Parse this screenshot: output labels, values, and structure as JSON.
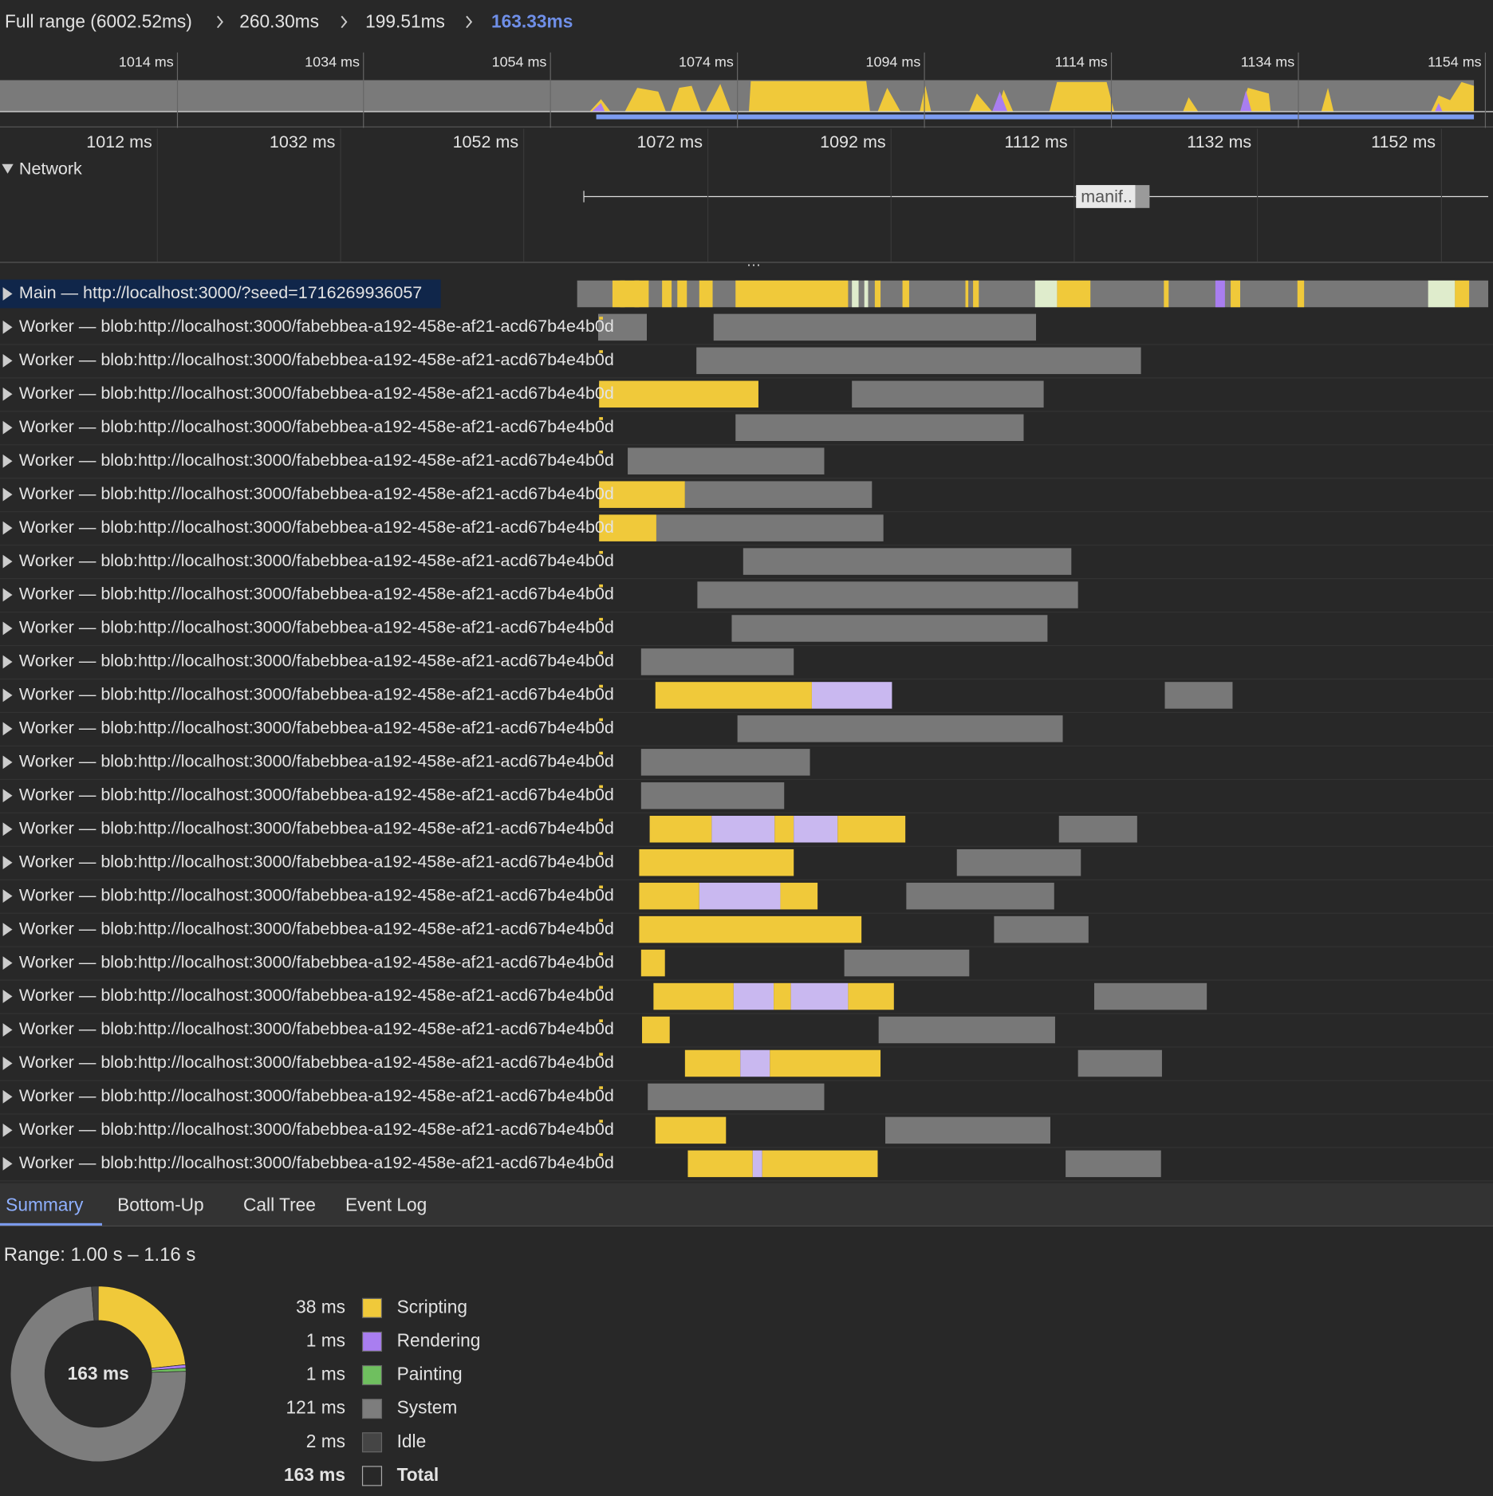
{
  "breadcrumbs": [
    "Full range (6002.52ms)",
    "260.30ms",
    "199.51ms",
    "163.33ms"
  ],
  "overview_ticks": [
    "1014 ms",
    "1034 ms",
    "1054 ms",
    "1074 ms",
    "1094 ms",
    "1114 ms",
    "1134 ms",
    "1154 ms"
  ],
  "ruler_ticks": [
    "1012 ms",
    "1032 ms",
    "1052 ms",
    "1072 ms",
    "1092 ms",
    "1112 ms",
    "1132 ms",
    "1152 ms"
  ],
  "network": {
    "label": "Network",
    "request": "manif.."
  },
  "main_track": "Main — http://localhost:3000/?seed=1716269936057",
  "worker_tracks": [
    "Worker — blob:http://localhost:3000/fabebbea-a192-458e-af21-acd67b4e4b0d",
    "Worker — blob:http://localhost:3000/fabebbea-a192-458e-af21-acd67b4e4b0d",
    "Worker — blob:http://localhost:3000/fabebbea-a192-458e-af21-acd67b4e4b0d",
    "Worker — blob:http://localhost:3000/fabebbea-a192-458e-af21-acd67b4e4b0d",
    "Worker — blob:http://localhost:3000/fabebbea-a192-458e-af21-acd67b4e4b0d",
    "Worker — blob:http://localhost:3000/fabebbea-a192-458e-af21-acd67b4e4b0d",
    "Worker — blob:http://localhost:3000/fabebbea-a192-458e-af21-acd67b4e4b0d",
    "Worker — blob:http://localhost:3000/fabebbea-a192-458e-af21-acd67b4e4b0d",
    "Worker — blob:http://localhost:3000/fabebbea-a192-458e-af21-acd67b4e4b0d",
    "Worker — blob:http://localhost:3000/fabebbea-a192-458e-af21-acd67b4e4b0d",
    "Worker — blob:http://localhost:3000/fabebbea-a192-458e-af21-acd67b4e4b0d",
    "Worker — blob:http://localhost:3000/fabebbea-a192-458e-af21-acd67b4e4b0d",
    "Worker — blob:http://localhost:3000/fabebbea-a192-458e-af21-acd67b4e4b0d",
    "Worker — blob:http://localhost:3000/fabebbea-a192-458e-af21-acd67b4e4b0d",
    "Worker — blob:http://localhost:3000/fabebbea-a192-458e-af21-acd67b4e4b0d",
    "Worker — blob:http://localhost:3000/fabebbea-a192-458e-af21-acd67b4e4b0d",
    "Worker — blob:http://localhost:3000/fabebbea-a192-458e-af21-acd67b4e4b0d",
    "Worker — blob:http://localhost:3000/fabebbea-a192-458e-af21-acd67b4e4b0d",
    "Worker — blob:http://localhost:3000/fabebbea-a192-458e-af21-acd67b4e4b0d",
    "Worker — blob:http://localhost:3000/fabebbea-a192-458e-af21-acd67b4e4b0d",
    "Worker — blob:http://localhost:3000/fabebbea-a192-458e-af21-acd67b4e4b0d",
    "Worker — blob:http://localhost:3000/fabebbea-a192-458e-af21-acd67b4e4b0d",
    "Worker — blob:http://localhost:3000/fabebbea-a192-458e-af21-acd67b4e4b0d",
    "Worker — blob:http://localhost:3000/fabebbea-a192-458e-af21-acd67b4e4b0d",
    "Worker — blob:http://localhost:3000/fabebbea-a192-458e-af21-acd67b4e4b0d",
    "Worker — blob:http://localhost:3000/fabebbea-a192-458e-af21-acd67b4e4b0d"
  ],
  "tabs": [
    "Summary",
    "Bottom-Up",
    "Call Tree",
    "Event Log"
  ],
  "summary": {
    "range": "Range: 1.00 s – 1.16 s",
    "items": [
      {
        "value": 38,
        "label": "38 ms",
        "name": "Scripting",
        "color": "#f0c93a"
      },
      {
        "value": 1,
        "label": "1 ms",
        "name": "Rendering",
        "color": "#a97ef0"
      },
      {
        "value": 1,
        "label": "1 ms",
        "name": "Painting",
        "color": "#6fbf5f"
      },
      {
        "value": 121,
        "label": "121 ms",
        "name": "System",
        "color": "#7d7d7d"
      },
      {
        "value": 2,
        "label": "2 ms",
        "name": "Idle",
        "color": "#454545"
      }
    ],
    "total": {
      "value": 163,
      "label": "163 ms",
      "name": "Total"
    }
  }
}
